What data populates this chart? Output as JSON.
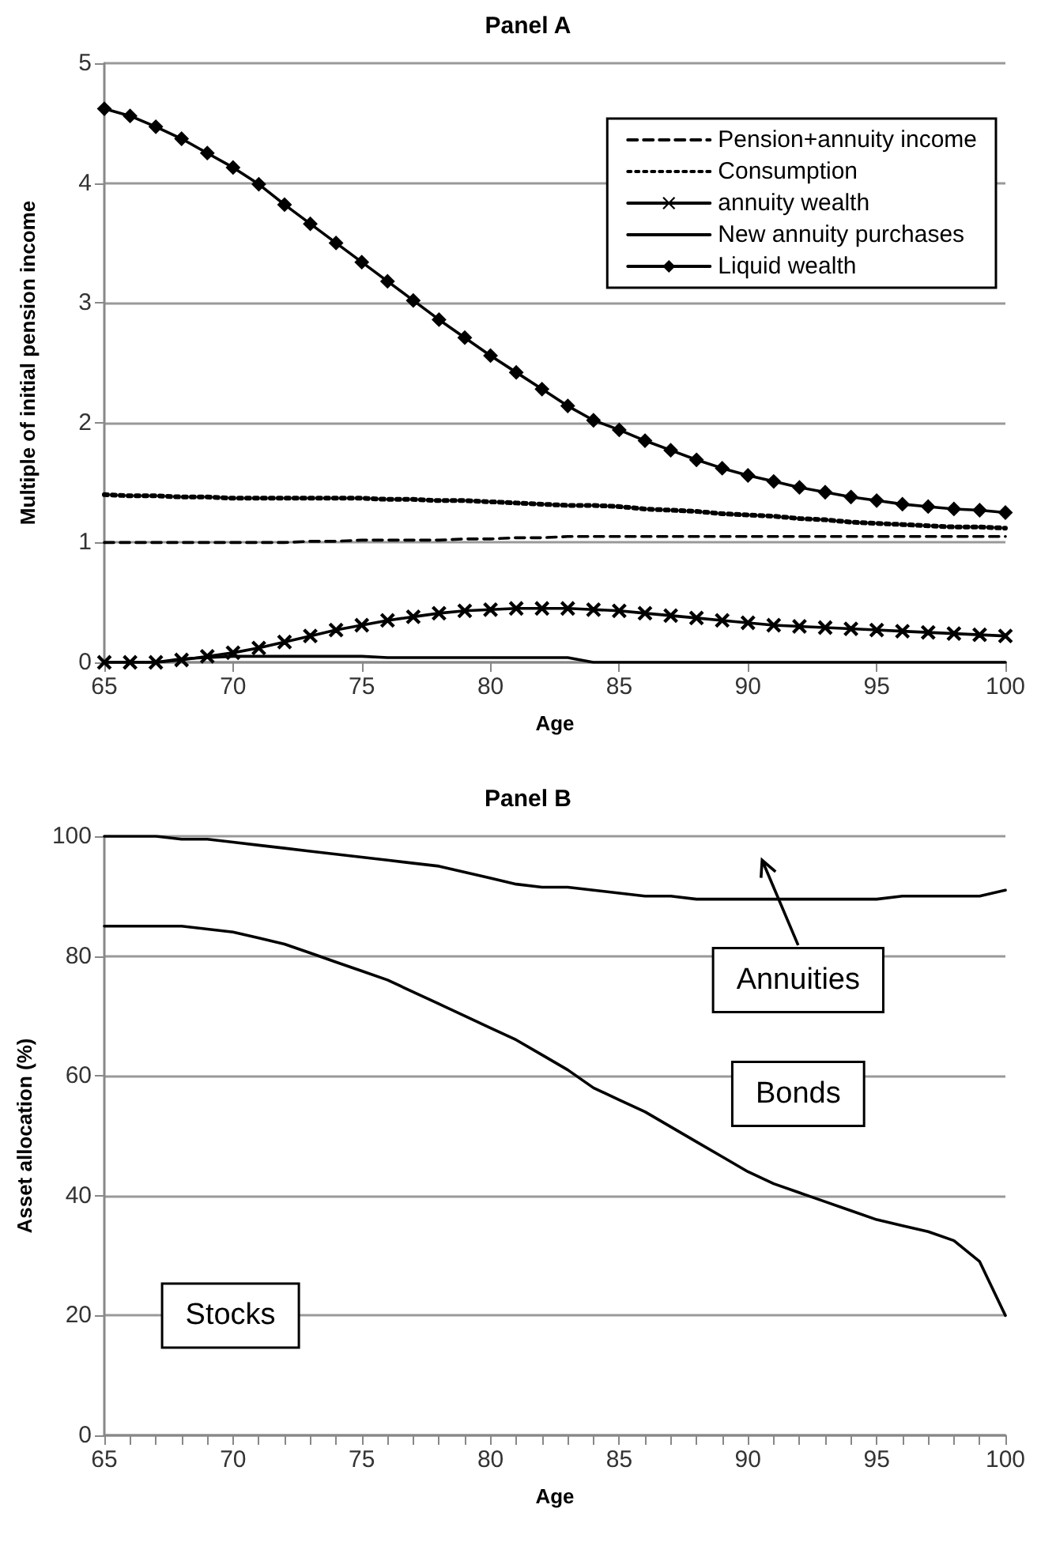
{
  "chart_data": [
    {
      "type": "line",
      "title": "Panel A",
      "xlabel": "Age",
      "ylabel": "Multiple of initial pension income",
      "x": [
        65,
        66,
        67,
        68,
        69,
        70,
        71,
        72,
        73,
        74,
        75,
        76,
        77,
        78,
        79,
        80,
        81,
        82,
        83,
        84,
        85,
        86,
        87,
        88,
        89,
        90,
        91,
        92,
        93,
        94,
        95,
        96,
        97,
        98,
        99,
        100
      ],
      "xlim": [
        65,
        100
      ],
      "xticks": [
        65,
        70,
        75,
        80,
        85,
        90,
        95,
        100
      ],
      "ylim": [
        0,
        5
      ],
      "yticks": [
        0,
        1,
        2,
        3,
        4,
        5
      ],
      "grid": "y",
      "legend": "top right",
      "series": [
        {
          "name": "Pension+annuity income",
          "color": "#000000",
          "line_style": "dashed",
          "marker": "none",
          "values": [
            1.0,
            1.0,
            1.0,
            1.0,
            1.0,
            1.0,
            1.0,
            1.0,
            1.01,
            1.01,
            1.02,
            1.02,
            1.02,
            1.02,
            1.03,
            1.03,
            1.04,
            1.04,
            1.05,
            1.05,
            1.05,
            1.05,
            1.05,
            1.05,
            1.05,
            1.05,
            1.05,
            1.05,
            1.05,
            1.05,
            1.05,
            1.05,
            1.05,
            1.05,
            1.05,
            1.05
          ]
        },
        {
          "name": "Consumption",
          "color": "#000000",
          "line_style": "dotted",
          "marker": "none",
          "values": [
            1.4,
            1.39,
            1.39,
            1.38,
            1.38,
            1.37,
            1.37,
            1.37,
            1.37,
            1.37,
            1.37,
            1.36,
            1.36,
            1.35,
            1.35,
            1.34,
            1.33,
            1.32,
            1.31,
            1.31,
            1.3,
            1.28,
            1.27,
            1.26,
            1.24,
            1.23,
            1.22,
            1.2,
            1.19,
            1.17,
            1.16,
            1.15,
            1.14,
            1.13,
            1.13,
            1.12
          ]
        },
        {
          "name": "annuity wealth",
          "color": "#000000",
          "line_style": "solid",
          "marker": "cross",
          "values": [
            0,
            0,
            0,
            0.02,
            0.05,
            0.08,
            0.12,
            0.17,
            0.22,
            0.27,
            0.31,
            0.35,
            0.38,
            0.41,
            0.43,
            0.44,
            0.45,
            0.45,
            0.45,
            0.44,
            0.43,
            0.41,
            0.39,
            0.37,
            0.35,
            0.33,
            0.31,
            0.3,
            0.29,
            0.28,
            0.27,
            0.26,
            0.25,
            0.24,
            0.23,
            0.22
          ]
        },
        {
          "name": "New annuity purchases",
          "color": "#000000",
          "line_style": "solid",
          "marker": "none",
          "values": [
            0,
            0,
            0,
            0.03,
            0.04,
            0.05,
            0.05,
            0.05,
            0.05,
            0.05,
            0.05,
            0.04,
            0.04,
            0.04,
            0.04,
            0.04,
            0.04,
            0.04,
            0.04,
            0,
            0,
            0,
            0,
            0,
            0,
            0,
            0,
            0,
            0,
            0,
            0,
            0,
            0,
            0,
            0,
            0
          ]
        },
        {
          "name": "Liquid wealth",
          "color": "#000000",
          "line_style": "solid",
          "marker": "diamond",
          "values": [
            4.62,
            4.56,
            4.47,
            4.37,
            4.25,
            4.13,
            3.99,
            3.82,
            3.66,
            3.5,
            3.34,
            3.18,
            3.02,
            2.86,
            2.71,
            2.56,
            2.42,
            2.28,
            2.14,
            2.02,
            1.94,
            1.85,
            1.77,
            1.69,
            1.62,
            1.56,
            1.51,
            1.46,
            1.42,
            1.38,
            1.35,
            1.32,
            1.3,
            1.28,
            1.27,
            1.25
          ]
        }
      ]
    },
    {
      "type": "line",
      "title": "Panel B",
      "xlabel": "Age",
      "ylabel": "Asset allocation (%)",
      "x": [
        65,
        66,
        67,
        68,
        69,
        70,
        71,
        72,
        73,
        74,
        75,
        76,
        77,
        78,
        79,
        80,
        81,
        82,
        83,
        84,
        85,
        86,
        87,
        88,
        89,
        90,
        91,
        92,
        93,
        94,
        95,
        96,
        97,
        98,
        99,
        100
      ],
      "xlim": [
        65,
        100
      ],
      "xticks": [
        65,
        {
          "value": 66,
          "label": null
        },
        {
          "value": 67,
          "label": null
        },
        {
          "value": 68,
          "label": null
        },
        {
          "value": 69,
          "label": null
        },
        70,
        {
          "value": 71,
          "label": null
        },
        {
          "value": 72,
          "label": null
        },
        {
          "value": 73,
          "label": null
        },
        {
          "value": 74,
          "label": null
        },
        75,
        {
          "value": 76,
          "label": null
        },
        {
          "value": 77,
          "label": null
        },
        {
          "value": 78,
          "label": null
        },
        {
          "value": 79,
          "label": null
        },
        80,
        {
          "value": 81,
          "label": null
        },
        {
          "value": 82,
          "label": null
        },
        {
          "value": 83,
          "label": null
        },
        {
          "value": 84,
          "label": null
        },
        85,
        {
          "value": 86,
          "label": null
        },
        {
          "value": 87,
          "label": null
        },
        {
          "value": 88,
          "label": null
        },
        {
          "value": 89,
          "label": null
        },
        90,
        {
          "value": 91,
          "label": null
        },
        {
          "value": 92,
          "label": null
        },
        {
          "value": 93,
          "label": null
        },
        {
          "value": 94,
          "label": null
        },
        95,
        {
          "value": 96,
          "label": null
        },
        {
          "value": 97,
          "label": null
        },
        {
          "value": 98,
          "label": null
        },
        {
          "value": 99,
          "label": null
        },
        100
      ],
      "ylim": [
        0,
        100
      ],
      "yticks": [
        0,
        20,
        40,
        60,
        80,
        100
      ],
      "grid": "y",
      "annotations": [
        "Annuities",
        "Bonds",
        "Stocks"
      ],
      "series": [
        {
          "color": "#000000",
          "line_style": "solid",
          "marker": "none",
          "values": [
            100,
            100,
            100,
            99.5,
            99.5,
            99,
            98.5,
            98,
            97.5,
            97,
            96.5,
            96,
            95.5,
            95,
            94,
            93,
            92,
            91.5,
            91.5,
            91,
            90.5,
            90,
            90,
            89.5,
            89.5,
            89.5,
            89.5,
            89.5,
            89.5,
            89.5,
            89.5,
            90,
            90,
            90,
            90,
            91
          ]
        },
        {
          "color": "#000000",
          "line_style": "solid",
          "marker": "none",
          "values": [
            85,
            85,
            85,
            85,
            84.5,
            84,
            83,
            82,
            80.5,
            79,
            77.5,
            76,
            74,
            72,
            70,
            68,
            66,
            63.5,
            61,
            58,
            56,
            54,
            51.5,
            49,
            46.5,
            44,
            42,
            40.5,
            39,
            37.5,
            36,
            35,
            34,
            32.5,
            29,
            20
          ]
        }
      ]
    }
  ]
}
